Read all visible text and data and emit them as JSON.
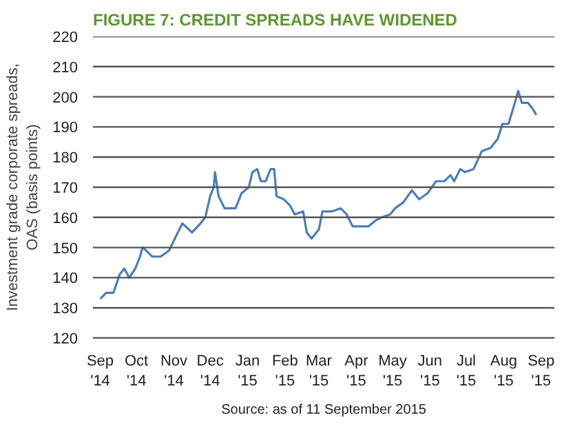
{
  "chart_data": {
    "type": "line",
    "title": "FIGURE 7: CREDIT SPREADS HAVE WIDENED",
    "ylabel": "Investment grade corporate spreads,\nOAS (basis points)",
    "annotations": [
      "Source: as of 11 September 2015"
    ],
    "x": [
      "2014-09-01",
      "2014-09-06",
      "2014-09-12",
      "2014-09-17",
      "2014-09-21",
      "2014-09-25",
      "2014-09-30",
      "2014-10-04",
      "2014-10-06",
      "2014-10-09",
      "2014-10-14",
      "2014-10-21",
      "2014-10-28",
      "2014-11-03",
      "2014-11-08",
      "2014-11-16",
      "2014-11-23",
      "2014-11-27",
      "2014-12-01",
      "2014-12-04",
      "2014-12-05",
      "2014-12-08",
      "2014-12-13",
      "2014-12-22",
      "2014-12-27",
      "2015-01-02",
      "2015-01-05",
      "2015-01-09",
      "2015-01-12",
      "2015-01-16",
      "2015-01-20",
      "2015-01-23",
      "2015-01-25",
      "2015-01-31",
      "2015-02-05",
      "2015-02-09",
      "2015-02-16",
      "2015-02-19",
      "2015-02-23",
      "2015-03-01",
      "2015-03-04",
      "2015-03-12",
      "2015-03-19",
      "2015-03-24",
      "2015-03-29",
      "2015-04-06",
      "2015-04-11",
      "2015-04-17",
      "2015-04-22",
      "2015-04-29",
      "2015-05-03",
      "2015-05-10",
      "2015-05-17",
      "2015-05-23",
      "2015-05-30",
      "2015-06-06",
      "2015-06-13",
      "2015-06-18",
      "2015-06-21",
      "2015-06-26",
      "2015-06-30",
      "2015-07-07",
      "2015-07-14",
      "2015-07-21",
      "2015-07-27",
      "2015-07-31",
      "2015-08-05",
      "2015-08-11",
      "2015-08-13",
      "2015-08-16",
      "2015-08-21",
      "2015-08-25",
      "2015-08-28"
    ],
    "series": [
      {
        "color": "#4a7ebb",
        "values": [
          133,
          135,
          135,
          141,
          143,
          140,
          143,
          147,
          150,
          149,
          147,
          147,
          149,
          154,
          158,
          155,
          158,
          160,
          167,
          170,
          175,
          167,
          163,
          163,
          168,
          170,
          175,
          176,
          172,
          172,
          176,
          176,
          167,
          166,
          164,
          161,
          162,
          155,
          153,
          156,
          162,
          162,
          163,
          161,
          157,
          157,
          157,
          159,
          160,
          161,
          163,
          165,
          169,
          166,
          168,
          172,
          172,
          174,
          172,
          176,
          175,
          176,
          182,
          183,
          186,
          191,
          191,
          199,
          202,
          198,
          198,
          196,
          194
        ]
      }
    ],
    "xlim": [
      "2014-08-26",
      "2015-09-12"
    ],
    "xticks": [
      {
        "value": "2014-09-01",
        "label": "Sep\n'14"
      },
      {
        "value": "2014-10-01",
        "label": "Oct\n'14"
      },
      {
        "value": "2014-11-01",
        "label": "Nov\n'14"
      },
      {
        "value": "2014-12-01",
        "label": "Dec\n'14"
      },
      {
        "value": "2015-01-01",
        "label": "Jan\n'15"
      },
      {
        "value": "2015-02-01",
        "label": "Feb\n'15"
      },
      {
        "value": "2015-03-01",
        "label": "Mar\n'15"
      },
      {
        "value": "2015-04-01",
        "label": "Apr\n'15"
      },
      {
        "value": "2015-05-01",
        "label": "May\n'15"
      },
      {
        "value": "2015-06-01",
        "label": "Jun\n'15"
      },
      {
        "value": "2015-07-01",
        "label": "Jul\n'15"
      },
      {
        "value": "2015-08-01",
        "label": "Aug\n'15"
      },
      {
        "value": "2015-09-01",
        "label": "Sep\n'15"
      }
    ],
    "ylim": [
      120,
      220
    ],
    "yticks": [
      120,
      130,
      140,
      150,
      160,
      170,
      180,
      190,
      200,
      210,
      220
    ],
    "grid": "y",
    "marker": "none",
    "line_style": "solid"
  }
}
